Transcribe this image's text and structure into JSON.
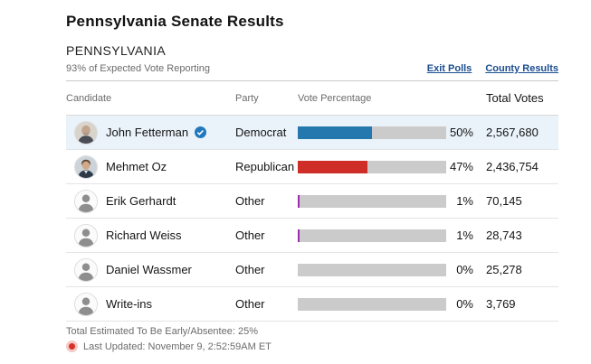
{
  "header": {
    "title": "Pennsylvania Senate Results",
    "state_label": "PENNSYLVANIA",
    "reporting_status": "93% of Expected Vote Reporting",
    "links": {
      "exit_polls": "Exit Polls",
      "county_results": "County Results"
    }
  },
  "table": {
    "columns": [
      "Candidate",
      "Party",
      "Vote Percentage",
      "Total Votes"
    ],
    "rows": [
      {
        "name": "John Fetterman",
        "party": "Democrat",
        "pct": "50%",
        "pct_value": 50,
        "total": "2,567,680",
        "winner": true,
        "bar_color": "#2478ad",
        "avatar": "fetterman-photo"
      },
      {
        "name": "Mehmet Oz",
        "party": "Republican",
        "pct": "47%",
        "pct_value": 47,
        "total": "2,436,754",
        "winner": false,
        "bar_color": "#cf2d27",
        "avatar": "oz-photo"
      },
      {
        "name": "Erik Gerhardt",
        "party": "Other",
        "pct": "1%",
        "pct_value": 1,
        "total": "70,145",
        "winner": false,
        "bar_color": "#9b2fae",
        "avatar": "generic-silhouette"
      },
      {
        "name": "Richard Weiss",
        "party": "Other",
        "pct": "1%",
        "pct_value": 1,
        "total": "28,743",
        "winner": false,
        "bar_color": "#9b2fae",
        "avatar": "generic-silhouette"
      },
      {
        "name": "Daniel Wassmer",
        "party": "Other",
        "pct": "0%",
        "pct_value": 0,
        "total": "25,278",
        "winner": false,
        "bar_color": "#9b2fae",
        "avatar": "generic-silhouette"
      },
      {
        "name": "Write-ins",
        "party": "Other",
        "pct": "0%",
        "pct_value": 0,
        "total": "3,769",
        "winner": false,
        "bar_color": "#9b2fae",
        "avatar": "generic-silhouette"
      }
    ]
  },
  "footer": {
    "absentee_note": "Total Estimated To Be Early/Absentee: 25%",
    "last_updated": "Last Updated: November 9, 2:52:59AM ET"
  },
  "colors": {
    "democrat_bar": "#2478ad",
    "republican_bar": "#cf2d27",
    "other_bar": "#9b2fae",
    "bar_track": "#cbcbcb",
    "winner_row_highlight": "#ebf3fa",
    "link_blue": "#1a4d8f",
    "winner_check_blue": "#2178bc",
    "live_dot_red": "#d83127"
  }
}
